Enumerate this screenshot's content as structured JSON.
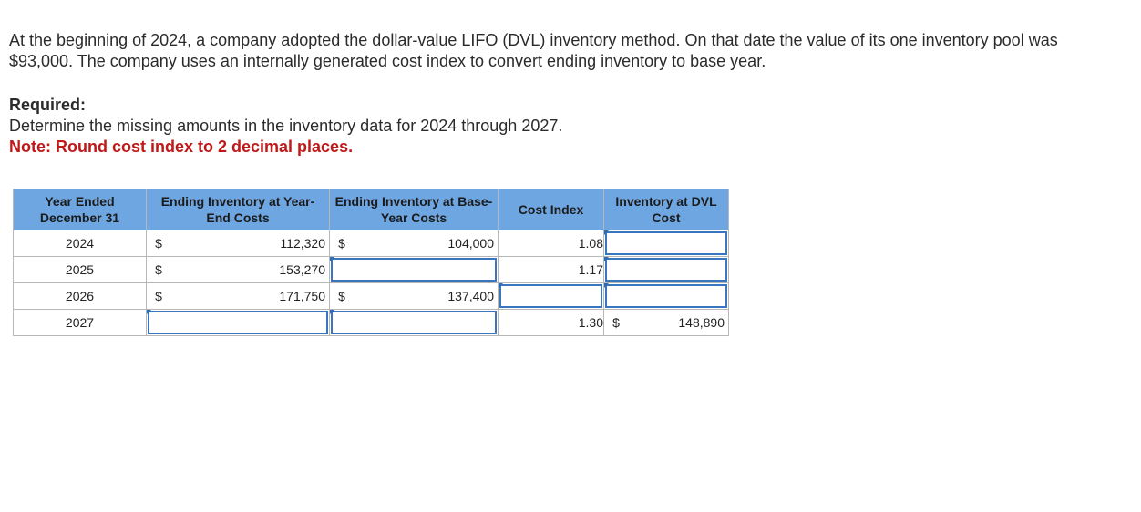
{
  "intro": "At the beginning of 2024, a company adopted the dollar-value LIFO (DVL) inventory method. On that date the value of its one inventory pool was $93,000. The company uses an internally generated cost index to convert ending inventory to base year.",
  "required_heading": "Required:",
  "required_text": "Determine the missing amounts in the inventory data for 2024 through 2027.",
  "note": "Note: Round cost index to 2 decimal places.",
  "table": {
    "headers": {
      "year": "Year Ended December 31",
      "year_end_costs": "Ending Inventory at Year-End Costs",
      "base_year_costs": "Ending Inventory at Base-Year Costs",
      "cost_index": "Cost Index",
      "dvl_cost": "Inventory at DVL Cost"
    },
    "currency_symbol": "$",
    "rows": [
      {
        "year": "2024",
        "year_end_costs": "112,320",
        "base_year_costs": "104,000",
        "cost_index": "1.08",
        "dvl_cost": ""
      },
      {
        "year": "2025",
        "year_end_costs": "153,270",
        "base_year_costs": "",
        "cost_index": "1.17",
        "dvl_cost": ""
      },
      {
        "year": "2026",
        "year_end_costs": "171,750",
        "base_year_costs": "137,400",
        "cost_index": "",
        "dvl_cost": ""
      },
      {
        "year": "2027",
        "year_end_costs": "",
        "base_year_costs": "",
        "cost_index": "1.30",
        "dvl_cost": "148,890"
      }
    ]
  }
}
